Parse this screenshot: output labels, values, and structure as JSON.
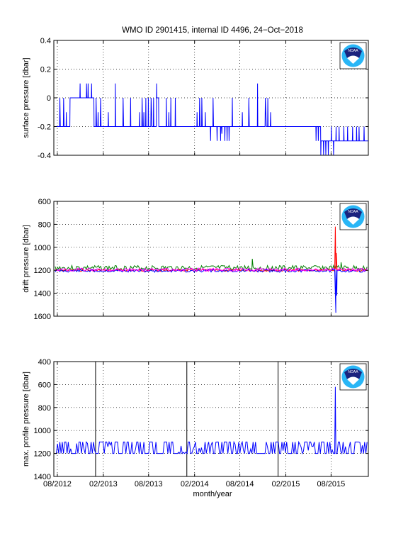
{
  "figure": {
    "title": "WMO ID 2901415, internal ID 4496, 24−Oct−2018",
    "xlabel": "month/year",
    "x_tick_labels": [
      "08/2012",
      "02/2013",
      "08/2013",
      "02/2014",
      "08/2014",
      "02/2015",
      "08/2015"
    ],
    "logo": {
      "text": "NOAA",
      "colors": {
        "navy": "#1a237e",
        "cyan": "#29b6f6",
        "white": "#ffffff"
      }
    }
  },
  "chart_data": [
    {
      "type": "line",
      "name": "surface-pressure",
      "ylabel": "surface pressure [dbar]",
      "ylim": [
        -0.4,
        0.4
      ],
      "y_ticks": [
        -0.4,
        -0.2,
        0,
        0.2,
        0.4
      ],
      "y_reversed": false,
      "grid": true,
      "series": [
        {
          "color": "#0000ff",
          "points": [
            [
              "2012-07-25",
              -0.2
            ],
            [
              "2012-08-10",
              -0.2
            ],
            [
              "2012-08-11",
              0
            ],
            [
              "2012-08-13",
              -0.2
            ],
            [
              "2012-08-25",
              -0.2
            ],
            [
              "2012-08-26",
              0
            ],
            [
              "2012-08-28",
              -0.2
            ],
            [
              "2012-09-05",
              -0.2
            ],
            [
              "2012-09-06",
              -0.1
            ],
            [
              "2012-09-07",
              -0.2
            ],
            [
              "2012-09-20",
              -0.2
            ],
            [
              "2012-09-21",
              0
            ],
            [
              "2012-10-30",
              0
            ],
            [
              "2012-10-31",
              0.1
            ],
            [
              "2012-11-01",
              0
            ],
            [
              "2012-11-25",
              0
            ],
            [
              "2012-11-26",
              0.1
            ],
            [
              "2012-11-27",
              0
            ],
            [
              "2012-12-01",
              0
            ],
            [
              "2012-12-02",
              0.1
            ],
            [
              "2012-12-03",
              0
            ],
            [
              "2012-12-15",
              0
            ],
            [
              "2012-12-16",
              0.1
            ],
            [
              "2012-12-17",
              0
            ],
            [
              "2012-12-25",
              0
            ],
            [
              "2012-12-26",
              -0.2
            ],
            [
              "2013-01-02",
              -0.2
            ],
            [
              "2013-01-03",
              0
            ],
            [
              "2013-01-05",
              -0.2
            ],
            [
              "2013-01-10",
              -0.2
            ],
            [
              "2013-01-11",
              -0.1
            ],
            [
              "2013-01-12",
              -0.2
            ],
            [
              "2013-01-20",
              -0.2
            ],
            [
              "2013-01-21",
              0
            ],
            [
              "2013-01-23",
              -0.2
            ],
            [
              "2013-02-20",
              -0.2
            ],
            [
              "2013-02-21",
              -0.1
            ],
            [
              "2013-02-22",
              -0.2
            ],
            [
              "2013-03-20",
              -0.2
            ],
            [
              "2013-03-21",
              0.1
            ],
            [
              "2013-03-22",
              -0.2
            ],
            [
              "2013-04-20",
              -0.2
            ],
            [
              "2013-04-21",
              0
            ],
            [
              "2013-04-23",
              -0.2
            ],
            [
              "2013-05-20",
              -0.2
            ],
            [
              "2013-05-21",
              0
            ],
            [
              "2013-05-22",
              -0.2
            ],
            [
              "2013-06-25",
              -0.2
            ],
            [
              "2013-06-26",
              -0.1
            ],
            [
              "2013-06-27",
              -0.2
            ],
            [
              "2013-07-05",
              -0.2
            ],
            [
              "2013-07-06",
              0
            ],
            [
              "2013-07-08",
              -0.2
            ],
            [
              "2013-07-12",
              -0.2
            ],
            [
              "2013-07-13",
              -0.1
            ],
            [
              "2013-07-14",
              -0.2
            ],
            [
              "2013-07-20",
              -0.2
            ],
            [
              "2013-07-21",
              0
            ],
            [
              "2013-07-22",
              -0.2
            ],
            [
              "2013-07-30",
              -0.2
            ],
            [
              "2013-07-31",
              0
            ],
            [
              "2013-08-01",
              -0.2
            ],
            [
              "2013-08-10",
              -0.2
            ],
            [
              "2013-08-11",
              0
            ],
            [
              "2013-08-13",
              -0.1
            ],
            [
              "2013-08-14",
              -0.2
            ],
            [
              "2013-08-20",
              -0.2
            ],
            [
              "2013-08-21",
              0
            ],
            [
              "2013-08-22",
              -0.2
            ],
            [
              "2013-09-01",
              -0.2
            ],
            [
              "2013-09-02",
              0.1
            ],
            [
              "2013-09-03",
              0
            ],
            [
              "2013-09-10",
              0
            ],
            [
              "2013-09-11",
              -0.2
            ],
            [
              "2013-10-10",
              -0.2
            ],
            [
              "2013-10-11",
              0
            ],
            [
              "2013-10-12",
              -0.2
            ],
            [
              "2013-10-20",
              -0.2
            ],
            [
              "2013-10-21",
              -0.1
            ],
            [
              "2013-10-22",
              -0.2
            ],
            [
              "2013-10-28",
              -0.2
            ],
            [
              "2013-10-29",
              0
            ],
            [
              "2013-10-30",
              -0.2
            ],
            [
              "2013-11-15",
              -0.2
            ],
            [
              "2013-11-16",
              0
            ],
            [
              "2013-11-17",
              -0.2
            ],
            [
              "2014-02-10",
              -0.2
            ],
            [
              "2014-02-11",
              -0.1
            ],
            [
              "2014-02-12",
              -0.2
            ],
            [
              "2014-02-20",
              -0.2
            ],
            [
              "2014-02-21",
              0
            ],
            [
              "2014-02-23",
              -0.2
            ],
            [
              "2014-03-01",
              -0.2
            ],
            [
              "2014-03-02",
              0
            ],
            [
              "2014-03-04",
              -0.2
            ],
            [
              "2014-03-15",
              -0.2
            ],
            [
              "2014-03-16",
              -0.1
            ],
            [
              "2014-03-17",
              -0.2
            ],
            [
              "2014-04-05",
              -0.2
            ],
            [
              "2014-04-06",
              -0.3
            ],
            [
              "2014-04-07",
              -0.2
            ],
            [
              "2014-04-15",
              -0.2
            ],
            [
              "2014-04-16",
              0
            ],
            [
              "2014-04-18",
              -0.2
            ],
            [
              "2014-05-01",
              -0.2
            ],
            [
              "2014-05-02",
              -0.3
            ],
            [
              "2014-05-03",
              -0.2
            ],
            [
              "2014-05-15",
              -0.2
            ],
            [
              "2014-05-16",
              -0.3
            ],
            [
              "2014-05-17",
              -0.2
            ],
            [
              "2014-05-20",
              -0.2
            ],
            [
              "2014-05-21",
              -0.25
            ],
            [
              "2014-05-22",
              -0.2
            ],
            [
              "2014-06-01",
              -0.2
            ],
            [
              "2014-06-02",
              -0.3
            ],
            [
              "2014-06-03",
              -0.2
            ],
            [
              "2014-06-10",
              -0.2
            ],
            [
              "2014-06-11",
              -0.3
            ],
            [
              "2014-06-12",
              -0.2
            ],
            [
              "2014-06-18",
              -0.2
            ],
            [
              "2014-06-19",
              -0.3
            ],
            [
              "2014-06-20",
              -0.2
            ],
            [
              "2014-07-01",
              -0.2
            ],
            [
              "2014-07-02",
              0
            ],
            [
              "2014-07-03",
              -0.2
            ],
            [
              "2014-08-10",
              -0.2
            ],
            [
              "2014-08-11",
              -0.1
            ],
            [
              "2014-08-12",
              -0.2
            ],
            [
              "2014-09-05",
              -0.2
            ],
            [
              "2014-09-06",
              0
            ],
            [
              "2014-09-08",
              -0.2
            ],
            [
              "2014-10-10",
              -0.2
            ],
            [
              "2014-10-11",
              0.1
            ],
            [
              "2014-10-12",
              -0.2
            ],
            [
              "2014-11-10",
              -0.2
            ],
            [
              "2014-11-11",
              0
            ],
            [
              "2014-11-13",
              -0.1
            ],
            [
              "2014-11-15",
              -0.2
            ],
            [
              "2014-11-20",
              -0.2
            ],
            [
              "2014-11-21",
              0
            ],
            [
              "2014-11-22",
              -0.2
            ],
            [
              "2014-12-01",
              -0.2
            ],
            [
              "2014-12-02",
              -0.1
            ],
            [
              "2014-12-03",
              -0.2
            ],
            [
              "2015-06-01",
              -0.2
            ],
            [
              "2015-06-02",
              -0.3
            ],
            [
              "2015-06-03",
              -0.2
            ],
            [
              "2015-06-10",
              -0.2
            ],
            [
              "2015-06-11",
              -0.3
            ],
            [
              "2015-06-12",
              -0.2
            ],
            [
              "2015-06-20",
              -0.2
            ],
            [
              "2015-06-21",
              -0.4
            ],
            [
              "2015-06-22",
              -0.3
            ],
            [
              "2015-07-01",
              -0.3
            ],
            [
              "2015-07-02",
              -0.4
            ],
            [
              "2015-07-03",
              -0.3
            ],
            [
              "2015-07-10",
              -0.3
            ],
            [
              "2015-07-11",
              -0.4
            ],
            [
              "2015-07-12",
              -0.3
            ],
            [
              "2015-07-20",
              -0.3
            ],
            [
              "2015-07-21",
              -0.4
            ],
            [
              "2015-07-22",
              -0.3
            ],
            [
              "2015-08-01",
              -0.3
            ],
            [
              "2015-08-02",
              -0.2
            ],
            [
              "2015-08-03",
              -0.3
            ],
            [
              "2015-08-10",
              -0.3
            ],
            [
              "2015-08-11",
              -0.4
            ],
            [
              "2015-08-12",
              -0.3
            ],
            [
              "2015-08-20",
              -0.3
            ],
            [
              "2015-08-21",
              -0.2
            ],
            [
              "2015-08-22",
              -0.3
            ],
            [
              "2015-09-01",
              -0.3
            ],
            [
              "2015-09-02",
              -0.2
            ],
            [
              "2015-09-03",
              -0.3
            ],
            [
              "2015-09-20",
              -0.3
            ],
            [
              "2015-09-21",
              -0.2
            ],
            [
              "2015-09-22",
              -0.3
            ],
            [
              "2015-10-05",
              -0.3
            ],
            [
              "2015-10-06",
              -0.2
            ],
            [
              "2015-10-07",
              -0.3
            ],
            [
              "2015-10-25",
              -0.3
            ],
            [
              "2015-10-26",
              -0.2
            ],
            [
              "2015-10-27",
              -0.3
            ],
            [
              "2015-11-10",
              -0.3
            ],
            [
              "2015-11-11",
              -0.2
            ],
            [
              "2015-11-12",
              -0.3
            ],
            [
              "2015-11-20",
              -0.3
            ],
            [
              "2015-11-21",
              -0.2
            ],
            [
              "2015-11-22",
              -0.3
            ],
            [
              "2015-12-10",
              -0.3
            ],
            [
              "2015-12-11",
              -0.2
            ],
            [
              "2015-12-12",
              -0.3
            ],
            [
              "2015-12-28",
              -0.3
            ]
          ]
        }
      ]
    },
    {
      "type": "line",
      "name": "drift-pressure",
      "ylabel": "drift pressure [dbar]",
      "ylim": [
        600,
        1600
      ],
      "y_ticks": [
        600,
        800,
        1000,
        1200,
        1400,
        1600
      ],
      "y_reversed": true,
      "grid": true,
      "series": [
        {
          "color": "#008000",
          "base": 1180,
          "amp": 22,
          "seed": 3,
          "spikes": [
            [
              "2014-09-20",
              1100
            ],
            [
              "2015-09-10",
              1130
            ]
          ]
        },
        {
          "color": "#ff0000",
          "base": 1200,
          "amp": 10,
          "seed": 7,
          "spikes": [
            [
              "2015-08-18",
              820
            ],
            [
              "2015-08-22",
              1050
            ]
          ]
        },
        {
          "color": "#0000ff",
          "base": 1205,
          "amp": 12,
          "seed": 11,
          "spikes": [
            [
              "2015-08-20",
              1570
            ],
            [
              "2015-08-24",
              1420
            ]
          ]
        },
        {
          "color": "#ff00ff",
          "base": 1195,
          "amp": 14,
          "seed": 19,
          "spikes": []
        }
      ]
    },
    {
      "type": "line",
      "name": "max-profile-pressure",
      "ylabel": "max. profile pressure [dbar]",
      "ylim": [
        400,
        1400
      ],
      "y_ticks": [
        400,
        600,
        800,
        1000,
        1200,
        1400
      ],
      "y_reversed": true,
      "grid": true,
      "vertical_lines": [
        "2013-01-01",
        "2014-01-01",
        "2015-01-01"
      ],
      "series": [
        {
          "color": "#0000ff",
          "levels": [
            1100,
            1200
          ],
          "seed": 5,
          "spikes": [
            [
              "2015-08-18",
              620
            ]
          ]
        }
      ]
    }
  ]
}
